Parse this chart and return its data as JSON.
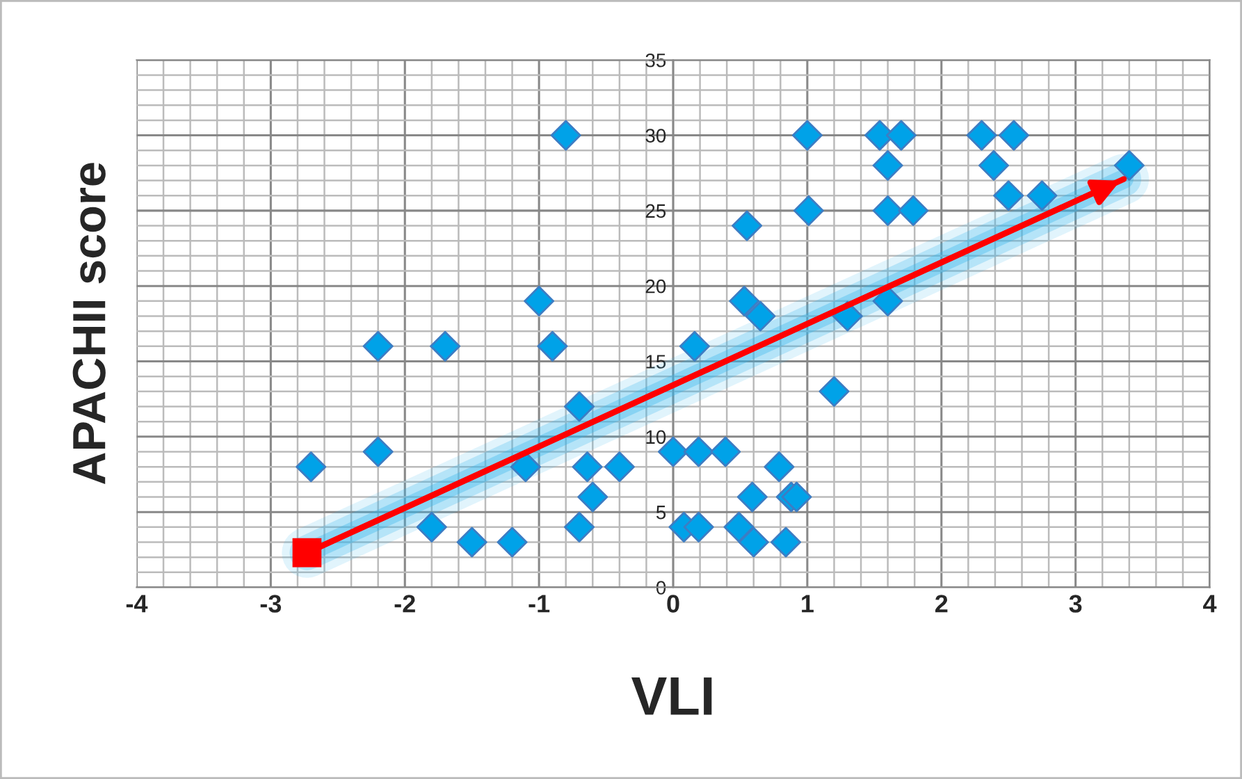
{
  "chart_data": {
    "type": "scatter",
    "xlabel": "VLI",
    "ylabel": "APACHII score",
    "xlim": [
      -4,
      4
    ],
    "xticks": [
      -4,
      -3,
      -2,
      -1,
      0,
      1,
      2,
      3,
      4
    ],
    "ylim": [
      0,
      35
    ],
    "yticks": [
      0,
      5,
      10,
      15,
      20,
      25,
      30,
      35
    ],
    "grid": true,
    "marker": "diamond",
    "series": [
      {
        "color": "#00a2e8",
        "x": [
          -2.7,
          -2.2,
          -2.2,
          -1.7,
          -1.8,
          -1.5,
          -1.2,
          -1.1,
          -1.0,
          -0.9,
          -0.8,
          -0.7,
          -0.7,
          -0.64,
          -0.6,
          -0.4,
          0.0,
          0.08,
          0.19,
          0.19,
          0.16,
          0.39,
          0.49,
          0.6,
          0.59,
          0.79,
          0.84,
          0.88,
          0.92,
          0.55,
          0.53,
          0.65,
          1.0,
          1.01,
          1.2,
          1.3,
          1.54,
          1.7,
          1.6,
          1.6,
          1.79,
          1.6,
          2.3,
          2.54,
          2.39,
          2.5,
          2.75,
          3.4
        ],
        "values": [
          8,
          16,
          9,
          16,
          4,
          3,
          3,
          8,
          19,
          16,
          30,
          12,
          4,
          8,
          6,
          8,
          9,
          4,
          4,
          9,
          16,
          9,
          4,
          3,
          6,
          8,
          3,
          6,
          6,
          24,
          19,
          18,
          30,
          25,
          13,
          18,
          30,
          30,
          28,
          25,
          25,
          19,
          30,
          30,
          28,
          26,
          26,
          28
        ]
      },
      {
        "type": "line",
        "color": "#ff0000",
        "marker": "square",
        "x": [
          -2.73,
          3.36
        ],
        "values": [
          2.3,
          27.1
        ]
      }
    ]
  }
}
